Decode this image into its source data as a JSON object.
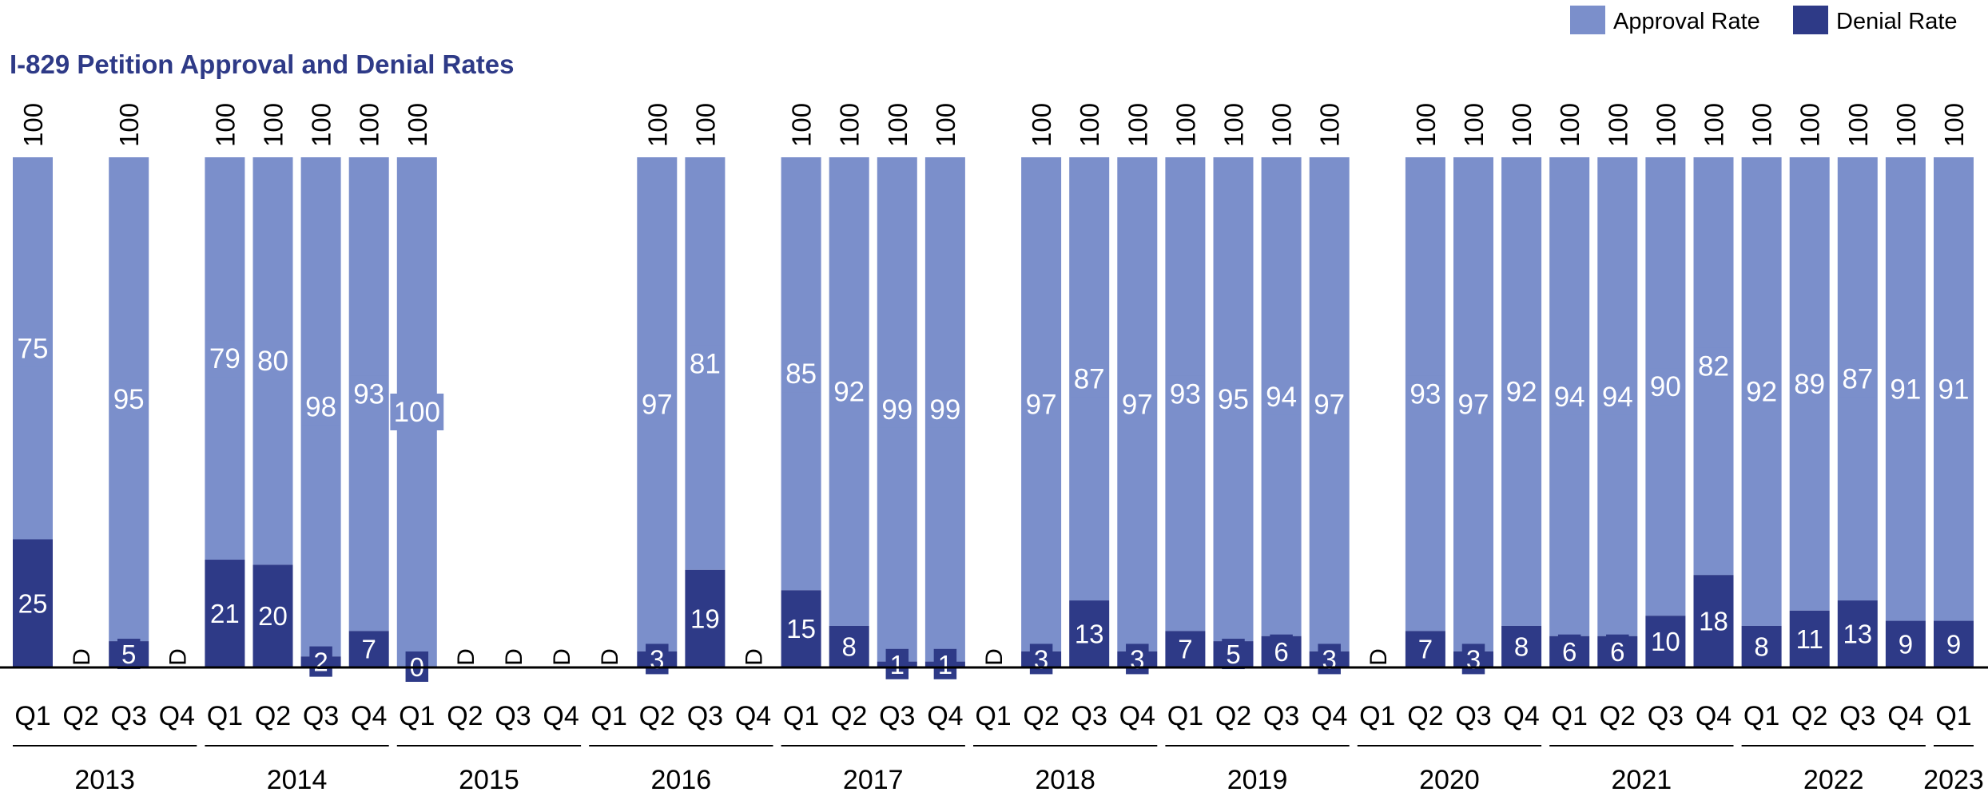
{
  "chart_data": {
    "type": "bar",
    "stacked": true,
    "title": "I-829 Petition Approval and Denial Rates",
    "xlabel": "",
    "ylabel": "",
    "ylim": [
      0,
      100
    ],
    "grid": false,
    "legend_position": "top-right",
    "suppressed_label": "D",
    "colors": {
      "approval": "#7b8fcb",
      "denial": "#2e3a87",
      "title": "#2e3a87",
      "text": "#000000"
    },
    "categories": [
      "Q1",
      "Q2",
      "Q3",
      "Q4",
      "Q1",
      "Q2",
      "Q3",
      "Q4",
      "Q1",
      "Q2",
      "Q3",
      "Q4",
      "Q1",
      "Q2",
      "Q3",
      "Q4",
      "Q1",
      "Q2",
      "Q3",
      "Q4",
      "Q1",
      "Q2",
      "Q3",
      "Q4",
      "Q1",
      "Q2",
      "Q3",
      "Q4",
      "Q1",
      "Q2",
      "Q3",
      "Q4",
      "Q1",
      "Q2",
      "Q3",
      "Q4",
      "Q1",
      "Q2",
      "Q3",
      "Q4",
      "Q1"
    ],
    "years": [
      {
        "label": "2013",
        "quarters": 4
      },
      {
        "label": "2014",
        "quarters": 4
      },
      {
        "label": "2015",
        "quarters": 4
      },
      {
        "label": "2016",
        "quarters": 4
      },
      {
        "label": "2017",
        "quarters": 4
      },
      {
        "label": "2018",
        "quarters": 4
      },
      {
        "label": "2019",
        "quarters": 4
      },
      {
        "label": "2020",
        "quarters": 4
      },
      {
        "label": "2021",
        "quarters": 4
      },
      {
        "label": "2022",
        "quarters": 4
      },
      {
        "label": "2023",
        "quarters": 1
      }
    ],
    "totals": [
      100,
      null,
      100,
      null,
      100,
      100,
      100,
      100,
      100,
      null,
      null,
      null,
      null,
      100,
      100,
      null,
      100,
      100,
      100,
      100,
      null,
      100,
      100,
      100,
      100,
      100,
      100,
      100,
      null,
      100,
      100,
      100,
      100,
      100,
      100,
      100,
      100,
      100,
      100,
      100,
      100
    ],
    "series": [
      {
        "name": "Approval Rate",
        "values": [
          75,
          null,
          95,
          null,
          79,
          80,
          98,
          93,
          100,
          null,
          null,
          null,
          null,
          97,
          81,
          null,
          85,
          92,
          99,
          99,
          null,
          97,
          87,
          97,
          93,
          95,
          94,
          97,
          null,
          93,
          97,
          92,
          94,
          94,
          90,
          82,
          92,
          89,
          87,
          91,
          91
        ]
      },
      {
        "name": "Denial Rate",
        "values": [
          25,
          null,
          5,
          null,
          21,
          20,
          2,
          7,
          0,
          null,
          null,
          null,
          null,
          3,
          19,
          null,
          15,
          8,
          1,
          1,
          null,
          3,
          13,
          3,
          7,
          5,
          6,
          3,
          null,
          7,
          3,
          8,
          6,
          6,
          10,
          18,
          8,
          11,
          13,
          9,
          9
        ]
      }
    ]
  }
}
